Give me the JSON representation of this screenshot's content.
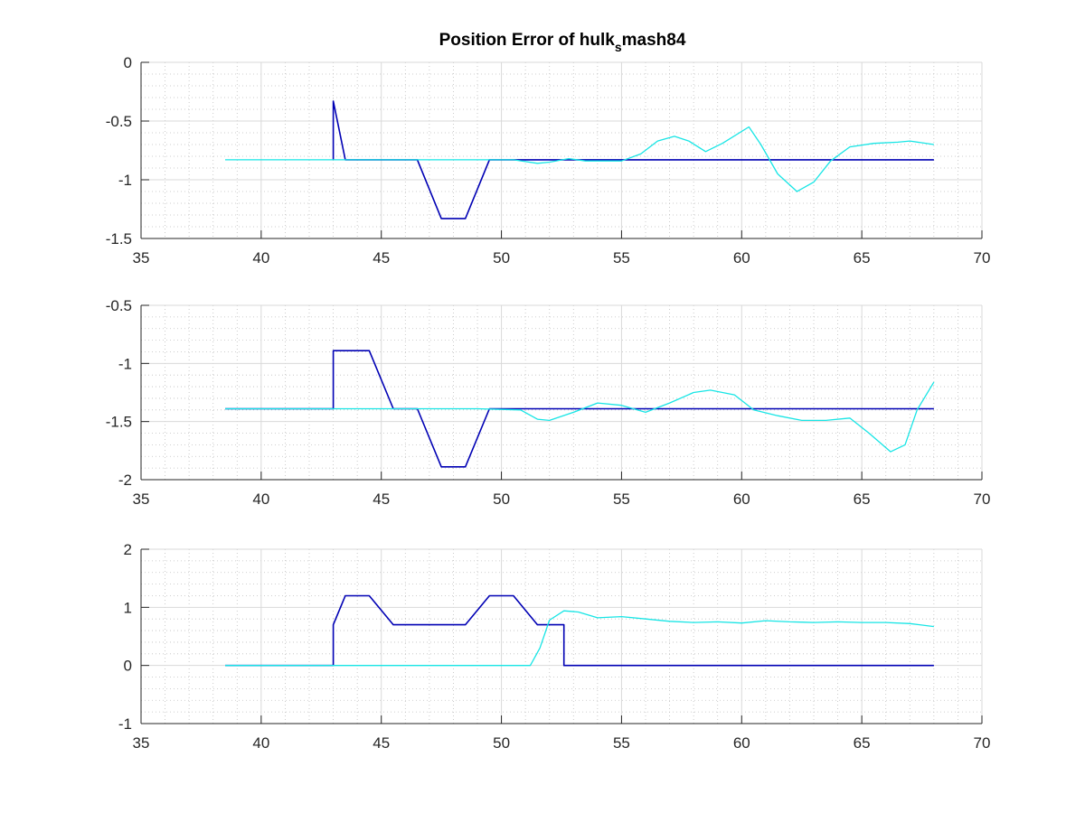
{
  "colors": {
    "reference": "#0000b4",
    "actual": "#17e5e5",
    "axis": "#262626",
    "major_grid": "#d9d9d9",
    "minor_grid": "#bfbfbf",
    "background": "#ffffff"
  },
  "chart_data": [
    {
      "type": "line",
      "title_prefix": "Position Error of hulk",
      "title_subscript": "s",
      "title_suffix": "mash84",
      "xlim": [
        35,
        70
      ],
      "ylim": [
        -1.5,
        0
      ],
      "xticks": [
        "35",
        "40",
        "45",
        "50",
        "55",
        "60",
        "65",
        "70"
      ],
      "yticks": [
        "0",
        "-0.5",
        "-1",
        "-1.5"
      ],
      "grid": "major and minor",
      "series": [
        {
          "color": "#0000b4",
          "x": [
            43.0,
            43.0,
            43.0,
            43.5,
            46.5,
            47.5,
            48.5,
            49.5,
            68.0
          ],
          "y": [
            -0.83,
            -0.33,
            -0.33,
            -0.83,
            -0.83,
            -1.33,
            -1.33,
            -0.83,
            -0.83
          ]
        },
        {
          "color": "#17e5e5",
          "x": [
            38.5,
            43.0,
            49.0,
            50.5,
            51.5,
            52.0,
            52.8,
            53.5,
            55.0,
            55.8,
            56.5,
            57.2,
            57.8,
            58.5,
            59.2,
            60.3,
            60.8,
            61.5,
            62.3,
            63.0,
            63.7,
            64.5,
            65.5,
            66.5,
            67.0,
            68.0
          ],
          "y": [
            -0.83,
            -0.83,
            -0.83,
            -0.83,
            -0.86,
            -0.85,
            -0.82,
            -0.84,
            -0.84,
            -0.78,
            -0.67,
            -0.63,
            -0.67,
            -0.76,
            -0.69,
            -0.55,
            -0.7,
            -0.95,
            -1.1,
            -1.02,
            -0.84,
            -0.72,
            -0.69,
            -0.68,
            -0.67,
            -0.7
          ]
        }
      ]
    },
    {
      "type": "line",
      "xlim": [
        35,
        70
      ],
      "ylim": [
        -2,
        -0.5
      ],
      "xticks": [
        "35",
        "40",
        "45",
        "50",
        "55",
        "60",
        "65",
        "70"
      ],
      "yticks": [
        "-0.5",
        "-1",
        "-1.5",
        "-2"
      ],
      "grid": "major and minor",
      "series": [
        {
          "color": "#0000b4",
          "x": [
            38.5,
            43.0,
            43.0,
            44.5,
            45.5,
            46.5,
            47.5,
            48.5,
            49.5,
            68.0
          ],
          "y": [
            -1.39,
            -1.39,
            -0.89,
            -0.89,
            -1.39,
            -1.39,
            -1.89,
            -1.89,
            -1.39,
            -1.39
          ]
        },
        {
          "color": "#17e5e5",
          "x": [
            38.5,
            49.0,
            50.8,
            51.5,
            52.0,
            53.0,
            54.0,
            55.0,
            56.0,
            57.0,
            58.0,
            58.7,
            59.7,
            60.5,
            61.5,
            62.5,
            63.5,
            64.5,
            65.3,
            66.2,
            66.8,
            67.3,
            68.0
          ],
          "y": [
            -1.39,
            -1.39,
            -1.4,
            -1.48,
            -1.49,
            -1.42,
            -1.34,
            -1.36,
            -1.42,
            -1.34,
            -1.25,
            -1.23,
            -1.27,
            -1.4,
            -1.45,
            -1.49,
            -1.49,
            -1.47,
            -1.6,
            -1.76,
            -1.7,
            -1.4,
            -1.16
          ]
        }
      ]
    },
    {
      "type": "line",
      "xlim": [
        35,
        70
      ],
      "ylim": [
        -1,
        2
      ],
      "xticks": [
        "35",
        "40",
        "45",
        "50",
        "55",
        "60",
        "65",
        "70"
      ],
      "yticks": [
        "2",
        "1",
        "0",
        "-1"
      ],
      "grid": "major and minor",
      "series": [
        {
          "color": "#0000b4",
          "x": [
            38.5,
            43.0,
            43.0,
            43.5,
            44.5,
            45.5,
            48.5,
            49.5,
            50.5,
            51.5,
            52.6,
            52.6,
            68.0
          ],
          "y": [
            0,
            0,
            0.7,
            1.2,
            1.2,
            0.7,
            0.7,
            1.2,
            1.2,
            0.7,
            0.7,
            0,
            0
          ]
        },
        {
          "color": "#17e5e5",
          "x": [
            38.5,
            51.2,
            51.6,
            52.0,
            52.6,
            53.2,
            54.0,
            55.0,
            56.0,
            57.0,
            58.0,
            59.0,
            60.0,
            61.0,
            62.0,
            63.0,
            64.0,
            65.0,
            66.0,
            67.0,
            68.0
          ],
          "y": [
            0,
            0,
            0.3,
            0.78,
            0.94,
            0.92,
            0.82,
            0.84,
            0.8,
            0.76,
            0.74,
            0.75,
            0.73,
            0.77,
            0.75,
            0.74,
            0.75,
            0.74,
            0.74,
            0.72,
            0.67
          ]
        }
      ]
    }
  ]
}
